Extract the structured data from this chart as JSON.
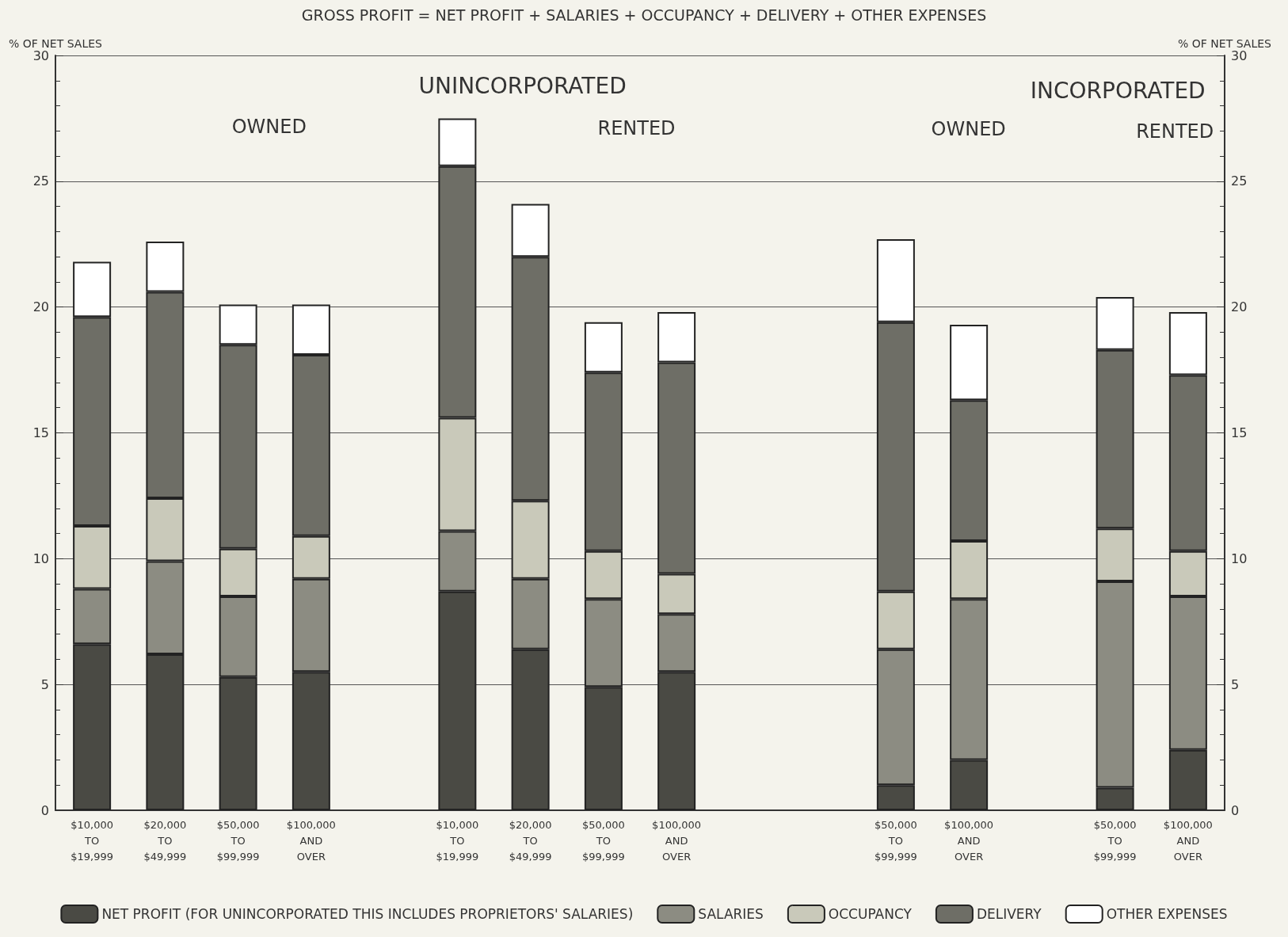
{
  "chart_data": {
    "type": "bar",
    "stacked": true,
    "title": "GROSS PROFIT = NET PROFIT + SALARIES + OCCUPANCY + DELIVERY + OTHER EXPENSES",
    "ylabel": "% OF NET SALES",
    "y2label": "% OF NET SALES",
    "categories": [
      "$10,000\nTO\n$19,999",
      "$20,000\nTO\n$49,999",
      "$50,000\nTO\n$99,999",
      "$100,000\nAND\nOVER",
      null,
      "$10,000\nTO\n$19,999",
      "$20,000\nTO\n$49,999",
      "$50,000\nTO\n$99,999",
      "$100,000\nAND\nOVER",
      null,
      null,
      "$50,000\nTO\n$99,999",
      "$100,000\nAND\nOVER",
      null,
      "$50,000\nTO\n$99,999",
      "$100,000\nAND\nOVER"
    ],
    "series": [
      {
        "name": "NET PROFIT (FOR UNINCORPORATED THIS INCLUDES PROPRIETORS' SALARIES)",
        "color": "#4a4a44",
        "values": [
          6.6,
          6.2,
          5.3,
          5.5,
          null,
          8.7,
          6.4,
          4.9,
          5.5,
          null,
          null,
          1.0,
          2.0,
          null,
          0.9,
          2.4
        ]
      },
      {
        "name": "SALARIES",
        "color": "#8c8c82",
        "values": [
          2.2,
          3.7,
          3.2,
          3.7,
          null,
          2.4,
          2.8,
          3.5,
          2.3,
          null,
          null,
          5.4,
          6.4,
          null,
          8.2,
          6.1
        ]
      },
      {
        "name": "OCCUPANCY",
        "color": "#c9c9ba",
        "values": [
          2.5,
          2.5,
          1.9,
          1.7,
          null,
          4.5,
          3.1,
          1.9,
          1.6,
          null,
          null,
          2.3,
          2.3,
          null,
          2.1,
          1.8
        ]
      },
      {
        "name": "DELIVERY",
        "color": "#6e6e66",
        "values": [
          8.3,
          8.2,
          8.1,
          7.2,
          null,
          10.0,
          9.7,
          7.1,
          8.4,
          null,
          null,
          10.7,
          5.6,
          null,
          7.1,
          7.0
        ]
      },
      {
        "name": "OTHER EXPENSES",
        "color": "#ffffff",
        "values": [
          2.2,
          2.0,
          1.6,
          2.0,
          null,
          1.9,
          2.1,
          2.0,
          2.0,
          null,
          null,
          3.3,
          3.0,
          null,
          2.1,
          2.5
        ]
      }
    ],
    "ylim": [
      0,
      30
    ],
    "yticks": [
      0,
      5,
      10,
      15,
      20,
      25,
      30
    ],
    "y2lim": [
      0,
      30
    ],
    "y2ticks": [
      0,
      5,
      10,
      15,
      20,
      25,
      30
    ],
    "grid": "y",
    "legend": "bottom",
    "annotations": [
      "UNINCORPORATED",
      "OWNED",
      "RENTED",
      "INCORPORATED",
      "OWNED",
      "RENTED"
    ]
  }
}
